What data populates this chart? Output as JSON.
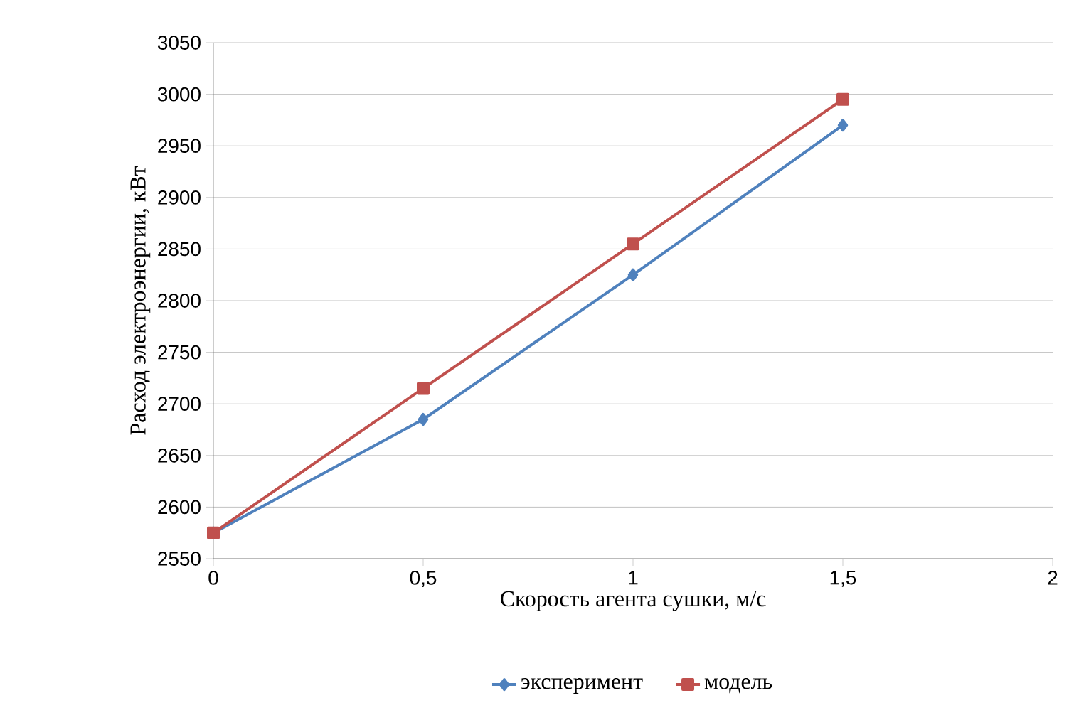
{
  "chart_data": {
    "type": "line",
    "xlabel": "Скорость агента сушки, м/с",
    "ylabel": "Расход электроэнергии, кВт",
    "x": [
      0,
      0.5,
      1,
      1.5
    ],
    "series": [
      {
        "name": "эксперимент",
        "color": "#4f81bd",
        "marker": "diamond",
        "values": [
          2575,
          2685,
          2825,
          2970
        ]
      },
      {
        "name": "модель",
        "color": "#c0504d",
        "marker": "square",
        "values": [
          2575,
          2715,
          2855,
          2995
        ]
      }
    ],
    "xlim": [
      0,
      2
    ],
    "ylim": [
      2550,
      3050
    ],
    "xticks": [
      0,
      {
        "value": 0.5,
        "label": "0,5"
      },
      1,
      {
        "value": 1.5,
        "label": "1,5"
      },
      2
    ],
    "yticks": [
      2550,
      2600,
      2650,
      2700,
      2750,
      2800,
      2850,
      2900,
      2950,
      3000,
      3050
    ],
    "grid": "y",
    "legend": "bottom",
    "line_style": "solid"
  }
}
